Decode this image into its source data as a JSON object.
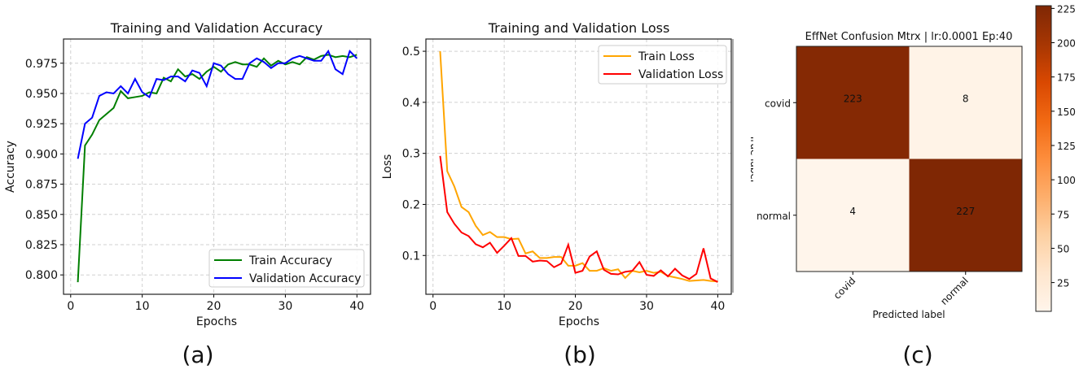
{
  "chart_data": [
    {
      "type": "line",
      "title": "Training and Validation Accuracy",
      "xlabel": "Epochs",
      "ylabel": "Accuracy",
      "xlim": [
        -1.0,
        41.9
      ],
      "ylim": [
        0.784,
        0.995
      ],
      "xticks": [
        0,
        10,
        20,
        30,
        40
      ],
      "yticks": [
        0.8,
        0.825,
        0.85,
        0.875,
        0.9,
        0.925,
        0.95,
        0.975
      ],
      "ytick_labels": [
        "0.800",
        "0.825",
        "0.850",
        "0.875",
        "0.900",
        "0.925",
        "0.950",
        "0.975"
      ],
      "grid": true,
      "legend_position": "lower-right",
      "panel_label": "(a)",
      "x": [
        1,
        2,
        3,
        4,
        5,
        6,
        7,
        8,
        9,
        10,
        11,
        12,
        13,
        14,
        15,
        16,
        17,
        18,
        19,
        20,
        21,
        22,
        23,
        24,
        25,
        26,
        27,
        28,
        29,
        30,
        31,
        32,
        33,
        34,
        35,
        36,
        37,
        38,
        39,
        40
      ],
      "series": [
        {
          "name": "Train Accuracy",
          "color": "#007f00",
          "values": [
            0.794,
            0.907,
            0.916,
            0.928,
            0.933,
            0.938,
            0.952,
            0.946,
            0.947,
            0.948,
            0.951,
            0.95,
            0.963,
            0.96,
            0.97,
            0.964,
            0.966,
            0.962,
            0.968,
            0.972,
            0.968,
            0.974,
            0.976,
            0.974,
            0.974,
            0.972,
            0.979,
            0.973,
            0.977,
            0.974,
            0.976,
            0.974,
            0.98,
            0.978,
            0.981,
            0.982,
            0.98,
            0.981,
            0.98,
            0.982
          ]
        },
        {
          "name": "Validation Accuracy",
          "color": "#0000ff",
          "values": [
            0.896,
            0.925,
            0.93,
            0.948,
            0.951,
            0.95,
            0.956,
            0.95,
            0.962,
            0.951,
            0.947,
            0.962,
            0.961,
            0.964,
            0.964,
            0.96,
            0.969,
            0.967,
            0.956,
            0.975,
            0.973,
            0.966,
            0.962,
            0.962,
            0.975,
            0.979,
            0.976,
            0.971,
            0.975,
            0.975,
            0.979,
            0.981,
            0.979,
            0.977,
            0.977,
            0.985,
            0.97,
            0.966,
            0.985,
            0.979
          ]
        }
      ]
    },
    {
      "type": "line",
      "title": "Training and Validation Loss",
      "xlabel": "Epochs",
      "ylabel": "Loss",
      "xlim": [
        -1.0,
        41.9
      ],
      "ylim": [
        0.024,
        0.524
      ],
      "xticks": [
        0,
        10,
        20,
        30,
        40
      ],
      "yticks": [
        0.1,
        0.2,
        0.3,
        0.4,
        0.5
      ],
      "ytick_labels": [
        "0.1",
        "0.2",
        "0.3",
        "0.4",
        "0.5"
      ],
      "grid": true,
      "legend_position": "top-right",
      "panel_label": "(b)",
      "x": [
        1,
        2,
        3,
        4,
        5,
        6,
        7,
        8,
        9,
        10,
        11,
        12,
        13,
        14,
        15,
        16,
        17,
        18,
        19,
        20,
        21,
        22,
        23,
        24,
        25,
        26,
        27,
        28,
        29,
        30,
        31,
        32,
        33,
        34,
        35,
        36,
        37,
        38,
        39,
        40
      ],
      "series": [
        {
          "name": "Train Loss",
          "color": "#ffa500",
          "values": [
            0.5,
            0.265,
            0.235,
            0.195,
            0.185,
            0.158,
            0.14,
            0.146,
            0.136,
            0.136,
            0.132,
            0.133,
            0.104,
            0.108,
            0.095,
            0.095,
            0.097,
            0.097,
            0.08,
            0.08,
            0.085,
            0.07,
            0.07,
            0.075,
            0.07,
            0.073,
            0.056,
            0.07,
            0.067,
            0.07,
            0.066,
            0.068,
            0.06,
            0.057,
            0.054,
            0.05,
            0.051,
            0.052,
            0.05,
            0.049
          ]
        },
        {
          "name": "Validation Loss",
          "color": "#ff0000",
          "values": [
            0.295,
            0.185,
            0.162,
            0.145,
            0.138,
            0.122,
            0.116,
            0.125,
            0.105,
            0.119,
            0.134,
            0.099,
            0.099,
            0.088,
            0.09,
            0.089,
            0.077,
            0.084,
            0.121,
            0.066,
            0.07,
            0.098,
            0.108,
            0.072,
            0.064,
            0.063,
            0.068,
            0.07,
            0.087,
            0.062,
            0.06,
            0.071,
            0.059,
            0.074,
            0.061,
            0.054,
            0.064,
            0.114,
            0.055,
            0.048
          ]
        }
      ]
    },
    {
      "type": "heatmap",
      "title": "EffNet Confusion Mtrx | lr:0.0001 Ep:40",
      "xlabel": "Predicted label",
      "ylabel": "True label",
      "row_labels": [
        "covid",
        "normal"
      ],
      "col_labels": [
        "covid",
        "normal"
      ],
      "values": [
        [
          223,
          8
        ],
        [
          4,
          227
        ]
      ],
      "colorbar": {
        "min": 4,
        "max": 227,
        "ticks": [
          25,
          50,
          75,
          100,
          125,
          150,
          175,
          200,
          225
        ],
        "colormap": [
          "#fff5eb",
          "#fee6ce",
          "#fdd0a2",
          "#fdae6b",
          "#fd8d3c",
          "#f16913",
          "#d94801",
          "#a63603",
          "#7f2704"
        ]
      },
      "panel_label": "(c)"
    }
  ]
}
